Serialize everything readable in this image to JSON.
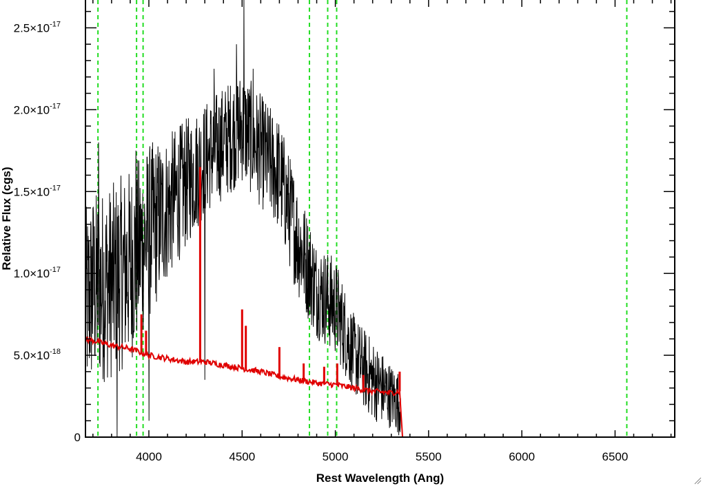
{
  "chart_data": {
    "type": "line",
    "xlabel": "Rest Wavelength (Ang)",
    "ylabel": "Relative Flux (cgs)",
    "xlim": [
      3660,
      6820
    ],
    "ylim": [
      0,
      2.67e-17
    ],
    "x_ticks": [
      {
        "value": 4000,
        "label": "4000"
      },
      {
        "value": 4500,
        "label": "4500"
      },
      {
        "value": 5000,
        "label": "5000"
      },
      {
        "value": 5500,
        "label": "5500"
      },
      {
        "value": 6000,
        "label": "6000"
      },
      {
        "value": 6500,
        "label": "6500"
      }
    ],
    "y_ticks": [
      {
        "value": 0,
        "mant": "0",
        "exp": ""
      },
      {
        "value": 5e-18,
        "mant": "5.0×10",
        "exp": "-18"
      },
      {
        "value": 1e-17,
        "mant": "1.0×10",
        "exp": "-17"
      },
      {
        "value": 1.5e-17,
        "mant": "1.5×10",
        "exp": "-17"
      },
      {
        "value": 2e-17,
        "mant": "2.0×10",
        "exp": "-17"
      },
      {
        "value": 2.5e-17,
        "mant": "2.5×10",
        "exp": "-17"
      }
    ],
    "grid": false,
    "legend": "none",
    "vertical_lines": [
      3727,
      3934,
      3969,
      4861,
      4959,
      5007,
      6563
    ],
    "series": [
      {
        "color": "#000000",
        "style": "noisy",
        "envelope": [
          [
            3660,
            8e-18,
            6e-18
          ],
          [
            3700,
            9e-18,
            6e-18
          ],
          [
            3800,
            9.5e-18,
            6e-18
          ],
          [
            3900,
            1.05e-17,
            6e-18
          ],
          [
            4000,
            1.25e-17,
            5.5e-18
          ],
          [
            4100,
            1.4e-17,
            4.5e-18
          ],
          [
            4200,
            1.55e-17,
            4e-18
          ],
          [
            4300,
            1.7e-17,
            3.5e-18
          ],
          [
            4400,
            1.8e-17,
            3.5e-18
          ],
          [
            4500,
            1.9e-17,
            3.5e-18
          ],
          [
            4600,
            1.75e-17,
            3.5e-18
          ],
          [
            4700,
            1.6e-17,
            3.5e-18
          ],
          [
            4800,
            1.2e-17,
            3.5e-18
          ],
          [
            4900,
            9e-18,
            3e-18
          ],
          [
            5000,
            8e-18,
            3e-18
          ],
          [
            5100,
            5e-18,
            2.5e-18
          ],
          [
            5200,
            3.5e-18,
            2.5e-18
          ],
          [
            5300,
            2.5e-18,
            2e-18
          ],
          [
            5350,
            2e-18,
            2e-18
          ]
        ],
        "spikes": [
          [
            3700,
            1.4e-17
          ],
          [
            3730,
            1.8e-17
          ],
          [
            3930,
            1.75e-17
          ],
          [
            4510,
            2.85e-17
          ],
          [
            4470,
            2.4e-17
          ],
          [
            4350,
            2.25e-17
          ],
          [
            4560,
            2.25e-17
          ],
          [
            4000,
            1e-18
          ],
          [
            3830,
            0.0
          ],
          [
            4300,
            3.5e-18
          ]
        ],
        "x_end": 5350
      },
      {
        "color": "#e00000",
        "style": "smooth",
        "points": [
          [
            3660,
            6e-18
          ],
          [
            3700,
            5.9e-18
          ],
          [
            3800,
            5.6e-18
          ],
          [
            3900,
            5.4e-18
          ],
          [
            4000,
            5e-18
          ],
          [
            4100,
            4.8e-18
          ],
          [
            4200,
            4.6e-18
          ],
          [
            4300,
            4.6e-18
          ],
          [
            4400,
            4.4e-18
          ],
          [
            4500,
            4.2e-18
          ],
          [
            4600,
            4e-18
          ],
          [
            4700,
            3.7e-18
          ],
          [
            4800,
            3.5e-18
          ],
          [
            4900,
            3.3e-18
          ],
          [
            5000,
            3.2e-18
          ],
          [
            5100,
            3e-18
          ],
          [
            5200,
            2.8e-18
          ],
          [
            5300,
            2.7e-18
          ],
          [
            5345,
            2.8e-18
          ],
          [
            5360,
            0.0
          ],
          [
            6820,
            0.0
          ]
        ],
        "lines": [
          [
            3960,
            7.5e-18
          ],
          [
            3985,
            6.5e-18
          ],
          [
            4275,
            1.65e-17
          ],
          [
            4500,
            7.8e-18
          ],
          [
            4520,
            6.8e-18
          ],
          [
            4700,
            5.5e-18
          ],
          [
            4830,
            4.5e-18
          ],
          [
            4940,
            4.3e-18
          ],
          [
            5010,
            4.5e-18
          ],
          [
            5150,
            3.8e-18
          ],
          [
            5345,
            4e-18
          ]
        ]
      }
    ]
  }
}
